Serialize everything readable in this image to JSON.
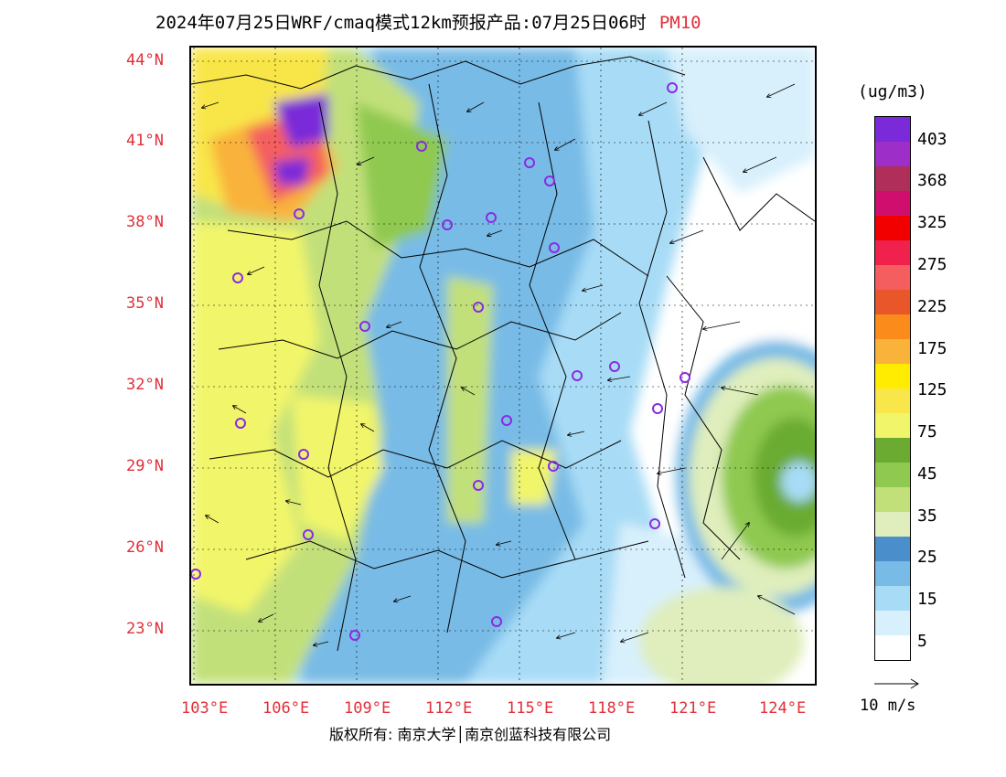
{
  "title": {
    "main": "2024年07月25日WRF/cmaq模式12km预报产品:07月25日06时",
    "pollutant": "PM10"
  },
  "map": {
    "lon_labels": [
      "103°E",
      "106°E",
      "109°E",
      "112°E",
      "115°E",
      "118°E",
      "121°E",
      "124°E"
    ],
    "lat_labels": [
      "44°N",
      "41°N",
      "38°N",
      "35°N",
      "32°N",
      "29°N",
      "26°N",
      "23°N"
    ]
  },
  "legend": {
    "unit": "(ug/m3)",
    "labels": [
      "403",
      "368",
      "325",
      "275",
      "225",
      "175",
      "125",
      "75",
      "45",
      "35",
      "25",
      "15",
      "5"
    ],
    "colors": [
      "#ffffff",
      "#d8f0fc",
      "#a8dcf6",
      "#78bbe6",
      "#4a8fcc",
      "#dfeebc",
      "#c2e07a",
      "#8fc950",
      "#6bab32",
      "#f1f56a",
      "#f8e64a",
      "#ffec00",
      "#f9b23a",
      "#fb8c1c",
      "#e8562a",
      "#f45e5e",
      "#f1214d",
      "#f20000",
      "#cf0e6e",
      "#b02e5a",
      "#9d2ec8",
      "#7a2ad8"
    ],
    "wind_ref": "10 m/s"
  },
  "footer": {
    "copyright": "版权所有: 南京大学│南京创蓝科技有限公司"
  }
}
